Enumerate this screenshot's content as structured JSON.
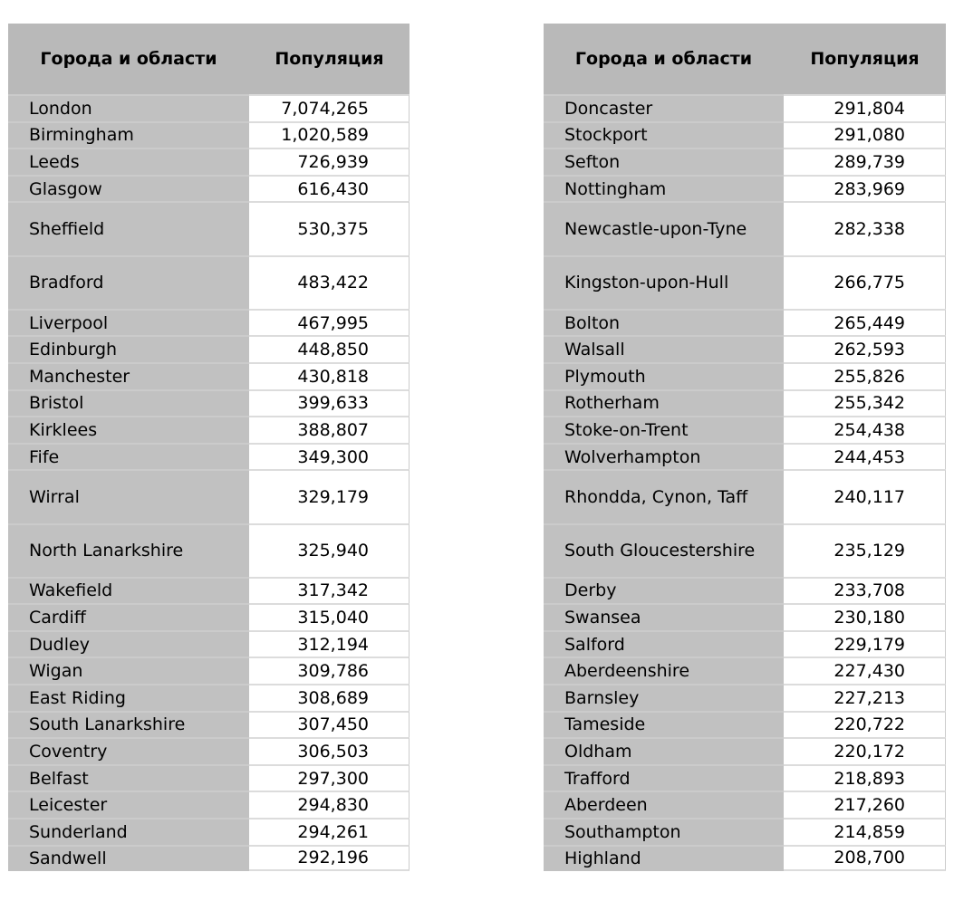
{
  "colors": {
    "page_bg": "#ffffff",
    "text_color": "#000000",
    "header_bg": "#b9b9b9",
    "name_cell_bg": "#c1c1c1",
    "value_cell_bg": "#ffffff",
    "name_separator": "#cbcbcb",
    "value_separator": "#dcdcdc",
    "header_separator": "#d6d6d6",
    "table_edge": "#cccccc"
  },
  "tables": [
    {
      "id": "left",
      "headers": {
        "city": "Города и области",
        "population": "Популяция"
      },
      "rows": [
        {
          "city": "London",
          "population": "7,074,265",
          "tall": false
        },
        {
          "city": "Birmingham",
          "population": "1,020,589",
          "tall": false
        },
        {
          "city": "Leeds",
          "population": "726,939",
          "tall": false
        },
        {
          "city": "Glasgow",
          "population": "616,430",
          "tall": false
        },
        {
          "city": "Sheffield",
          "population": "530,375",
          "tall": true
        },
        {
          "city": "Bradford",
          "population": "483,422",
          "tall": true
        },
        {
          "city": "Liverpool",
          "population": "467,995",
          "tall": false
        },
        {
          "city": "Edinburgh",
          "population": "448,850",
          "tall": false
        },
        {
          "city": "Manchester",
          "population": "430,818",
          "tall": false
        },
        {
          "city": "Bristol",
          "population": "399,633",
          "tall": false
        },
        {
          "city": "Kirklees",
          "population": "388,807",
          "tall": false
        },
        {
          "city": "Fife",
          "population": "349,300",
          "tall": false
        },
        {
          "city": "Wirral",
          "population": "329,179",
          "tall": true
        },
        {
          "city": "North Lanarkshire",
          "population": "325,940",
          "tall": true
        },
        {
          "city": "Wakefield",
          "population": "317,342",
          "tall": false
        },
        {
          "city": "Cardiff",
          "population": "315,040",
          "tall": false
        },
        {
          "city": "Dudley",
          "population": "312,194",
          "tall": false
        },
        {
          "city": "Wigan",
          "population": "309,786",
          "tall": false
        },
        {
          "city": "East Riding",
          "population": "308,689",
          "tall": false
        },
        {
          "city": "South Lanarkshire",
          "population": "307,450",
          "tall": false
        },
        {
          "city": "Coventry",
          "population": "306,503",
          "tall": false
        },
        {
          "city": "Belfast",
          "population": "297,300",
          "tall": false
        },
        {
          "city": "Leicester",
          "population": "294,830",
          "tall": false
        },
        {
          "city": "Sunderland",
          "population": "294,261",
          "tall": false
        },
        {
          "city": "Sandwell",
          "population": "292,196",
          "tall": false
        }
      ]
    },
    {
      "id": "right",
      "headers": {
        "city": "Города и области",
        "population": "Популяция"
      },
      "rows": [
        {
          "city": "Doncaster",
          "population": "291,804",
          "tall": false
        },
        {
          "city": "Stockport",
          "population": "291,080",
          "tall": false
        },
        {
          "city": "Sefton",
          "population": "289,739",
          "tall": false
        },
        {
          "city": "Nottingham",
          "population": "283,969",
          "tall": false
        },
        {
          "city": "Newcastle-upon-Tyne",
          "population": "282,338",
          "tall": true
        },
        {
          "city": "Kingston-upon-Hull",
          "population": "266,775",
          "tall": true
        },
        {
          "city": "Bolton",
          "population": "265,449",
          "tall": false
        },
        {
          "city": "Walsall",
          "population": "262,593",
          "tall": false
        },
        {
          "city": "Plymouth",
          "population": "255,826",
          "tall": false
        },
        {
          "city": "Rotherham",
          "population": "255,342",
          "tall": false
        },
        {
          "city": "Stoke-on-Trent",
          "population": "254,438",
          "tall": false
        },
        {
          "city": "Wolverhampton",
          "population": "244,453",
          "tall": false
        },
        {
          "city": "Rhondda, Cynon, Taff",
          "population": "240,117",
          "tall": true
        },
        {
          "city": "South Gloucestershire",
          "population": "235,129",
          "tall": true
        },
        {
          "city": "Derby",
          "population": "233,708",
          "tall": false
        },
        {
          "city": "Swansea",
          "population": "230,180",
          "tall": false
        },
        {
          "city": "Salford",
          "population": "229,179",
          "tall": false
        },
        {
          "city": "Aberdeenshire",
          "population": "227,430",
          "tall": false
        },
        {
          "city": "Barnsley",
          "population": "227,213",
          "tall": false
        },
        {
          "city": "Tameside",
          "population": "220,722",
          "tall": false
        },
        {
          "city": "Oldham",
          "population": "220,172",
          "tall": false
        },
        {
          "city": "Trafford",
          "population": "218,893",
          "tall": false
        },
        {
          "city": "Aberdeen",
          "population": "217,260",
          "tall": false
        },
        {
          "city": "Southampton",
          "population": "214,859",
          "tall": false
        },
        {
          "city": "Highland",
          "population": "208,700",
          "tall": false
        }
      ]
    }
  ]
}
